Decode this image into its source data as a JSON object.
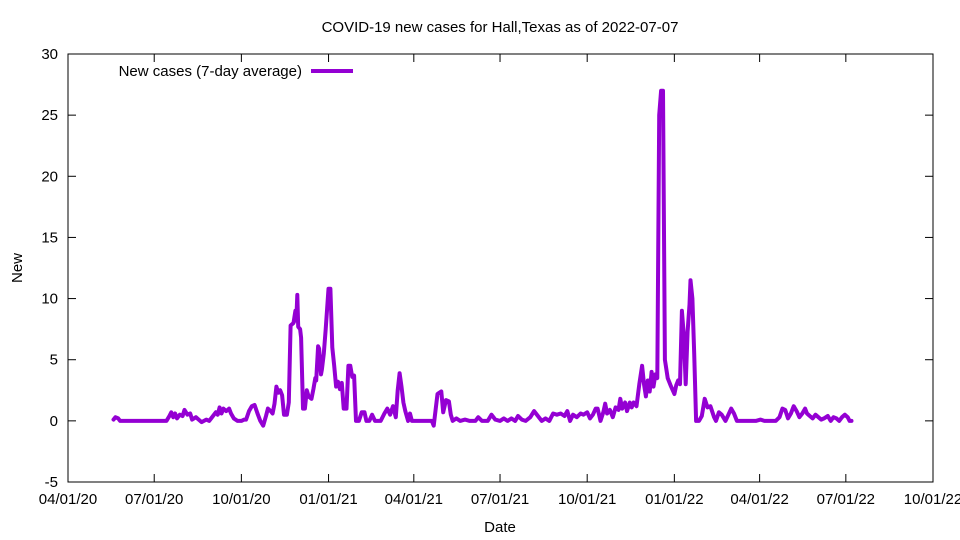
{
  "chart_data": {
    "type": "line",
    "title": "COVID-19 new cases for Hall,Texas as of 2022-07-07",
    "xlabel": "Date",
    "ylabel": "New",
    "x_scale": "date",
    "xlim": [
      "2020-04-01",
      "2022-10-01"
    ],
    "ylim": [
      -5,
      30
    ],
    "grid": false,
    "legend_position": "top-left",
    "x_ticks": [
      {
        "date": "2020-04-01",
        "label": "04/01/20"
      },
      {
        "date": "2020-07-01",
        "label": "07/01/20"
      },
      {
        "date": "2020-10-01",
        "label": "10/01/20"
      },
      {
        "date": "2021-01-01",
        "label": "01/01/21"
      },
      {
        "date": "2021-04-01",
        "label": "04/01/21"
      },
      {
        "date": "2021-07-01",
        "label": "07/01/21"
      },
      {
        "date": "2021-10-01",
        "label": "10/01/21"
      },
      {
        "date": "2022-01-01",
        "label": "01/01/22"
      },
      {
        "date": "2022-04-01",
        "label": "04/01/22"
      },
      {
        "date": "2022-07-01",
        "label": "07/01/22"
      },
      {
        "date": "2022-10-01",
        "label": "10/01/22"
      }
    ],
    "y_ticks": [
      -5,
      0,
      5,
      10,
      15,
      20,
      25,
      30
    ],
    "series": [
      {
        "name": "New cases (7-day average)",
        "color": "#9400d3",
        "points": [
          [
            "2020-05-19",
            0.1
          ],
          [
            "2020-05-21",
            0.3
          ],
          [
            "2020-05-24",
            0.2
          ],
          [
            "2020-05-26",
            0.0
          ],
          [
            "2020-06-10",
            0.0
          ],
          [
            "2020-06-25",
            0.0
          ],
          [
            "2020-07-10",
            0.0
          ],
          [
            "2020-07-14",
            0.0
          ],
          [
            "2020-07-17",
            0.4
          ],
          [
            "2020-07-19",
            0.7
          ],
          [
            "2020-07-21",
            0.3
          ],
          [
            "2020-07-23",
            0.6
          ],
          [
            "2020-07-25",
            0.2
          ],
          [
            "2020-07-28",
            0.5
          ],
          [
            "2020-07-31",
            0.4
          ],
          [
            "2020-08-02",
            0.9
          ],
          [
            "2020-08-05",
            0.5
          ],
          [
            "2020-08-08",
            0.6
          ],
          [
            "2020-08-10",
            0.1
          ],
          [
            "2020-08-14",
            0.3
          ],
          [
            "2020-08-17",
            0.1
          ],
          [
            "2020-08-20",
            -0.1
          ],
          [
            "2020-08-25",
            0.1
          ],
          [
            "2020-08-28",
            0.0
          ],
          [
            "2020-09-01",
            0.4
          ],
          [
            "2020-09-04",
            0.7
          ],
          [
            "2020-09-06",
            0.5
          ],
          [
            "2020-09-08",
            1.1
          ],
          [
            "2020-09-10",
            0.6
          ],
          [
            "2020-09-12",
            1.0
          ],
          [
            "2020-09-15",
            0.8
          ],
          [
            "2020-09-18",
            1.0
          ],
          [
            "2020-09-20",
            0.6
          ],
          [
            "2020-09-23",
            0.2
          ],
          [
            "2020-09-27",
            0.0
          ],
          [
            "2020-10-01",
            0.0
          ],
          [
            "2020-10-04",
            0.1
          ],
          [
            "2020-10-06",
            0.1
          ],
          [
            "2020-10-09",
            0.8
          ],
          [
            "2020-10-12",
            1.2
          ],
          [
            "2020-10-15",
            1.3
          ],
          [
            "2020-10-18",
            0.6
          ],
          [
            "2020-10-21",
            0.0
          ],
          [
            "2020-10-24",
            -0.4
          ],
          [
            "2020-10-27",
            0.4
          ],
          [
            "2020-10-29",
            1.0
          ],
          [
            "2020-11-01",
            0.8
          ],
          [
            "2020-11-03",
            0.6
          ],
          [
            "2020-11-05",
            1.4
          ],
          [
            "2020-11-07",
            2.8
          ],
          [
            "2020-11-09",
            2.3
          ],
          [
            "2020-11-11",
            2.5
          ],
          [
            "2020-11-13",
            2.1
          ],
          [
            "2020-11-15",
            0.5
          ],
          [
            "2020-11-18",
            0.5
          ],
          [
            "2020-11-20",
            1.5
          ],
          [
            "2020-11-22",
            7.8
          ],
          [
            "2020-11-25",
            8.0
          ],
          [
            "2020-11-27",
            9.0
          ],
          [
            "2020-11-28",
            8.2
          ],
          [
            "2020-11-29",
            10.3
          ],
          [
            "2020-11-30",
            7.7
          ],
          [
            "2020-12-02",
            7.5
          ],
          [
            "2020-12-03",
            6.8
          ],
          [
            "2020-12-05",
            1.0
          ],
          [
            "2020-12-07",
            1.0
          ],
          [
            "2020-12-09",
            2.5
          ],
          [
            "2020-12-11",
            2.0
          ],
          [
            "2020-12-14",
            1.8
          ],
          [
            "2020-12-16",
            2.6
          ],
          [
            "2020-12-18",
            3.5
          ],
          [
            "2020-12-19",
            3.3
          ],
          [
            "2020-12-21",
            6.1
          ],
          [
            "2020-12-22",
            5.9
          ],
          [
            "2020-12-24",
            3.8
          ],
          [
            "2020-12-25",
            4.2
          ],
          [
            "2020-12-27",
            5.5
          ],
          [
            "2020-12-29",
            7.5
          ],
          [
            "2021-01-01",
            10.8
          ],
          [
            "2021-01-03",
            10.8
          ],
          [
            "2021-01-05",
            6.0
          ],
          [
            "2021-01-07",
            4.5
          ],
          [
            "2021-01-09",
            2.8
          ],
          [
            "2021-01-11",
            3.2
          ],
          [
            "2021-01-13",
            2.6
          ],
          [
            "2021-01-15",
            3.1
          ],
          [
            "2021-01-17",
            1.0
          ],
          [
            "2021-01-20",
            1.0
          ],
          [
            "2021-01-22",
            4.5
          ],
          [
            "2021-01-24",
            4.5
          ],
          [
            "2021-01-26",
            3.6
          ],
          [
            "2021-01-28",
            3.7
          ],
          [
            "2021-01-30",
            0.0
          ],
          [
            "2021-02-02",
            0.0
          ],
          [
            "2021-02-05",
            0.7
          ],
          [
            "2021-02-08",
            0.7
          ],
          [
            "2021-02-10",
            0.0
          ],
          [
            "2021-02-13",
            0.0
          ],
          [
            "2021-02-16",
            0.5
          ],
          [
            "2021-02-19",
            0.0
          ],
          [
            "2021-02-22",
            0.0
          ],
          [
            "2021-02-25",
            0.0
          ],
          [
            "2021-03-01",
            0.6
          ],
          [
            "2021-03-04",
            1.0
          ],
          [
            "2021-03-07",
            0.5
          ],
          [
            "2021-03-10",
            1.2
          ],
          [
            "2021-03-13",
            0.3
          ],
          [
            "2021-03-15",
            2.5
          ],
          [
            "2021-03-17",
            3.9
          ],
          [
            "2021-03-19",
            2.8
          ],
          [
            "2021-03-21",
            1.5
          ],
          [
            "2021-03-23",
            0.8
          ],
          [
            "2021-03-26",
            0.0
          ],
          [
            "2021-03-28",
            0.6
          ],
          [
            "2021-03-30",
            0.0
          ],
          [
            "2021-04-05",
            0.0
          ],
          [
            "2021-04-12",
            0.0
          ],
          [
            "2021-04-20",
            0.0
          ],
          [
            "2021-04-22",
            -0.4
          ],
          [
            "2021-04-24",
            0.9
          ],
          [
            "2021-04-26",
            2.2
          ],
          [
            "2021-04-28",
            2.3
          ],
          [
            "2021-04-30",
            2.4
          ],
          [
            "2021-05-02",
            0.7
          ],
          [
            "2021-05-05",
            1.7
          ],
          [
            "2021-05-08",
            1.6
          ],
          [
            "2021-05-10",
            0.5
          ],
          [
            "2021-05-12",
            0.0
          ],
          [
            "2021-05-16",
            0.2
          ],
          [
            "2021-05-20",
            0.0
          ],
          [
            "2021-05-25",
            0.1
          ],
          [
            "2021-05-30",
            0.0
          ],
          [
            "2021-06-05",
            0.0
          ],
          [
            "2021-06-08",
            0.3
          ],
          [
            "2021-06-12",
            0.0
          ],
          [
            "2021-06-18",
            0.0
          ],
          [
            "2021-06-22",
            0.5
          ],
          [
            "2021-06-26",
            0.1
          ],
          [
            "2021-07-01",
            0.0
          ],
          [
            "2021-07-05",
            0.2
          ],
          [
            "2021-07-09",
            0.0
          ],
          [
            "2021-07-13",
            0.2
          ],
          [
            "2021-07-17",
            0.0
          ],
          [
            "2021-07-20",
            0.4
          ],
          [
            "2021-07-24",
            0.1
          ],
          [
            "2021-07-28",
            0.0
          ],
          [
            "2021-08-02",
            0.3
          ],
          [
            "2021-08-06",
            0.8
          ],
          [
            "2021-08-10",
            0.4
          ],
          [
            "2021-08-14",
            0.0
          ],
          [
            "2021-08-18",
            0.2
          ],
          [
            "2021-08-22",
            0.0
          ],
          [
            "2021-08-26",
            0.6
          ],
          [
            "2021-08-30",
            0.5
          ],
          [
            "2021-09-03",
            0.6
          ],
          [
            "2021-09-07",
            0.4
          ],
          [
            "2021-09-10",
            0.8
          ],
          [
            "2021-09-13",
            0.0
          ],
          [
            "2021-09-16",
            0.5
          ],
          [
            "2021-09-20",
            0.3
          ],
          [
            "2021-09-24",
            0.6
          ],
          [
            "2021-09-27",
            0.5
          ],
          [
            "2021-10-01",
            0.7
          ],
          [
            "2021-10-04",
            0.2
          ],
          [
            "2021-10-07",
            0.5
          ],
          [
            "2021-10-10",
            1.0
          ],
          [
            "2021-10-12",
            1.0
          ],
          [
            "2021-10-15",
            0.0
          ],
          [
            "2021-10-18",
            0.7
          ],
          [
            "2021-10-20",
            1.4
          ],
          [
            "2021-10-22",
            0.6
          ],
          [
            "2021-10-25",
            0.9
          ],
          [
            "2021-10-28",
            0.3
          ],
          [
            "2021-10-31",
            1.1
          ],
          [
            "2021-11-03",
            0.9
          ],
          [
            "2021-11-05",
            1.8
          ],
          [
            "2021-11-07",
            1.0
          ],
          [
            "2021-11-10",
            1.5
          ],
          [
            "2021-11-12",
            0.8
          ],
          [
            "2021-11-15",
            1.5
          ],
          [
            "2021-11-17",
            1.1
          ],
          [
            "2021-11-19",
            1.5
          ],
          [
            "2021-11-22",
            1.2
          ],
          [
            "2021-11-25",
            3.0
          ],
          [
            "2021-11-28",
            4.5
          ],
          [
            "2021-11-30",
            3.0
          ],
          [
            "2021-12-02",
            2.0
          ],
          [
            "2021-12-04",
            3.3
          ],
          [
            "2021-12-06",
            2.4
          ],
          [
            "2021-12-08",
            4.0
          ],
          [
            "2021-12-10",
            2.8
          ],
          [
            "2021-12-12",
            3.8
          ],
          [
            "2021-12-14",
            3.5
          ],
          [
            "2021-12-16",
            25.0
          ],
          [
            "2021-12-18",
            27.0
          ],
          [
            "2021-12-20",
            27.0
          ],
          [
            "2021-12-22",
            5.0
          ],
          [
            "2021-12-25",
            3.5
          ],
          [
            "2021-12-28",
            2.9
          ],
          [
            "2022-01-01",
            2.2
          ],
          [
            "2022-01-03",
            2.9
          ],
          [
            "2022-01-05",
            3.3
          ],
          [
            "2022-01-07",
            3.0
          ],
          [
            "2022-01-09",
            9.0
          ],
          [
            "2022-01-11",
            7.0
          ],
          [
            "2022-01-13",
            3.0
          ],
          [
            "2022-01-15",
            7.3
          ],
          [
            "2022-01-17",
            9.5
          ],
          [
            "2022-01-18",
            11.5
          ],
          [
            "2022-01-20",
            10.0
          ],
          [
            "2022-01-22",
            5.5
          ],
          [
            "2022-01-24",
            0.0
          ],
          [
            "2022-01-27",
            0.0
          ],
          [
            "2022-01-30",
            0.4
          ],
          [
            "2022-02-02",
            1.8
          ],
          [
            "2022-02-05",
            1.1
          ],
          [
            "2022-02-08",
            1.2
          ],
          [
            "2022-02-12",
            0.3
          ],
          [
            "2022-02-14",
            0.0
          ],
          [
            "2022-02-17",
            0.7
          ],
          [
            "2022-02-20",
            0.5
          ],
          [
            "2022-02-24",
            0.0
          ],
          [
            "2022-02-27",
            0.5
          ],
          [
            "2022-03-02",
            1.0
          ],
          [
            "2022-03-05",
            0.6
          ],
          [
            "2022-03-08",
            0.0
          ],
          [
            "2022-03-15",
            0.0
          ],
          [
            "2022-03-22",
            0.0
          ],
          [
            "2022-03-28",
            0.0
          ],
          [
            "2022-04-02",
            0.1
          ],
          [
            "2022-04-06",
            0.0
          ],
          [
            "2022-04-12",
            0.0
          ],
          [
            "2022-04-18",
            0.0
          ],
          [
            "2022-04-22",
            0.3
          ],
          [
            "2022-04-25",
            1.0
          ],
          [
            "2022-04-28",
            0.9
          ],
          [
            "2022-05-01",
            0.2
          ],
          [
            "2022-05-04",
            0.6
          ],
          [
            "2022-05-07",
            1.2
          ],
          [
            "2022-05-10",
            0.8
          ],
          [
            "2022-05-13",
            0.3
          ],
          [
            "2022-05-16",
            0.6
          ],
          [
            "2022-05-19",
            1.0
          ],
          [
            "2022-05-21",
            0.6
          ],
          [
            "2022-05-24",
            0.4
          ],
          [
            "2022-05-27",
            0.2
          ],
          [
            "2022-05-30",
            0.5
          ],
          [
            "2022-06-02",
            0.3
          ],
          [
            "2022-06-05",
            0.1
          ],
          [
            "2022-06-08",
            0.2
          ],
          [
            "2022-06-12",
            0.4
          ],
          [
            "2022-06-15",
            0.0
          ],
          [
            "2022-06-18",
            0.3
          ],
          [
            "2022-06-21",
            0.2
          ],
          [
            "2022-06-24",
            0.0
          ],
          [
            "2022-06-27",
            0.3
          ],
          [
            "2022-06-30",
            0.5
          ],
          [
            "2022-07-03",
            0.3
          ],
          [
            "2022-07-05",
            0.0
          ],
          [
            "2022-07-07",
            0.0
          ]
        ]
      }
    ]
  }
}
